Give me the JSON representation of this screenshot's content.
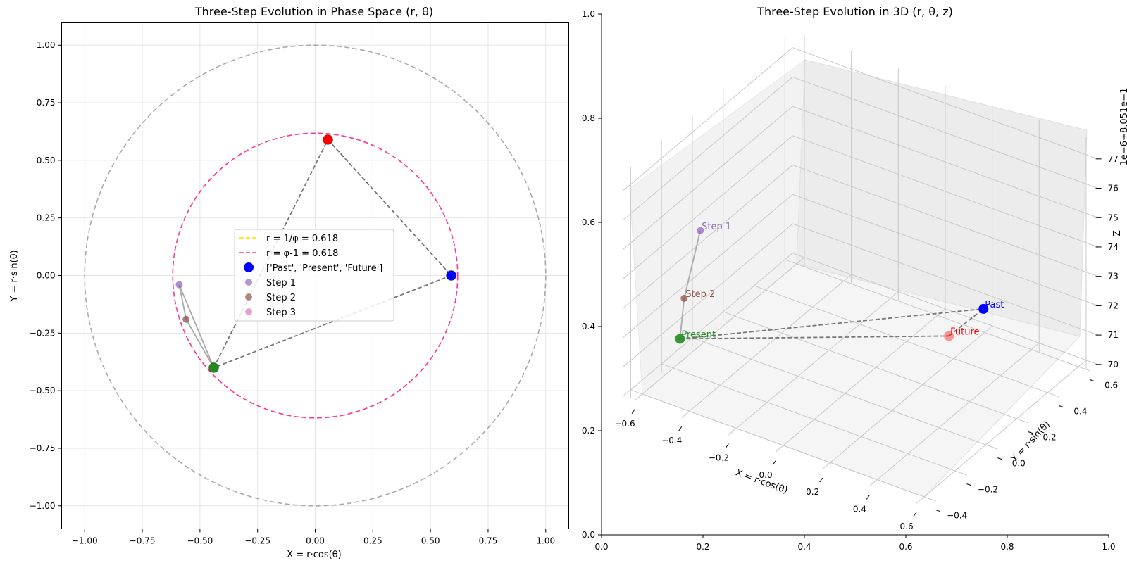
{
  "chart_data": [
    {
      "type": "scatter",
      "title": "Three-Step Evolution in Phase Space (r, θ)",
      "xlabel": "X = r·cos(θ)",
      "ylabel": "Y = r·sin(θ)",
      "xlim": [
        -1.1,
        1.1
      ],
      "ylim": [
        -1.1,
        1.1
      ],
      "xticks": [
        -1.0,
        -0.75,
        -0.5,
        -0.25,
        0.0,
        0.25,
        0.5,
        0.75,
        1.0
      ],
      "yticks": [
        -1.0,
        -0.75,
        -0.5,
        -0.25,
        0.0,
        0.25,
        0.5,
        0.75,
        1.0
      ],
      "xtick_labels": [
        "−1.00",
        "−0.75",
        "−0.50",
        "−0.25",
        "0.00",
        "0.25",
        "0.50",
        "0.75",
        "1.00"
      ],
      "ytick_labels": [
        "−1.00",
        "−0.75",
        "−0.50",
        "−0.25",
        "0.00",
        "0.25",
        "0.50",
        "0.75",
        "1.00"
      ],
      "grid": true,
      "legend_position": "center",
      "circles": [
        {
          "r": 1.0,
          "color": "#aaaaaa",
          "label": ""
        },
        {
          "r": 0.618,
          "color": "#ffd700",
          "label": "r = 1/φ = 0.618"
        },
        {
          "r": 0.618,
          "color": "#ff33aa",
          "label": "r = φ-1 = 0.618"
        }
      ],
      "series": [
        {
          "name": "['Past', 'Present', 'Future']",
          "color": "#0000ff",
          "points": [
            {
              "x": 0.59,
              "y": 0.0,
              "color": "#0000ff"
            },
            {
              "x": -0.44,
              "y": -0.4,
              "color": "#228b22"
            },
            {
              "x": 0.055,
              "y": 0.59,
              "color": "#ff0000"
            }
          ]
        },
        {
          "name": "Step 1",
          "color": "#9467bd",
          "points": [
            {
              "x": -0.59,
              "y": -0.04
            }
          ]
        },
        {
          "name": "Step 2",
          "color": "#8c564b",
          "points": [
            {
              "x": -0.56,
              "y": -0.19
            }
          ]
        },
        {
          "name": "Step 3",
          "color": "#e377c2",
          "points": [
            {
              "x": -0.44,
              "y": -0.4
            }
          ]
        }
      ]
    },
    {
      "type": "scatter",
      "title": "Three-Step Evolution in 3D (r, θ, z)",
      "xlabel": "X = r·cos(θ)",
      "ylabel": "Y = r·sin(θ)",
      "zlabel": "Z",
      "z_offset_label": "1e−6+8.051e−1",
      "xticks": [
        "−0.6",
        "−0.4",
        "−0.2",
        "0.0",
        "0.2",
        "0.4",
        "0.6"
      ],
      "yticks": [
        "−0.4",
        "−0.2",
        "0.0",
        "0.2",
        "0.4",
        "0.6"
      ],
      "zticks": [
        "70",
        "71",
        "72",
        "73",
        "74",
        "75",
        "76",
        "77"
      ],
      "frame_xticks": [
        "0.0",
        "0.2",
        "0.4",
        "0.6",
        "0.8",
        "1.0"
      ],
      "frame_yticks": [
        "0.0",
        "0.2",
        "0.4",
        "0.6",
        "0.8",
        "1.0"
      ],
      "labels": {
        "past": "Past",
        "present": "Present",
        "future": "Future",
        "step1": "Step 1",
        "step2": "Step 2"
      }
    }
  ],
  "colors": {
    "past": "#0000ff",
    "present": "#228b22",
    "future": "#ff0000",
    "step1": "#9467bd",
    "step2": "#8c564b",
    "step3": "#e377c2"
  }
}
